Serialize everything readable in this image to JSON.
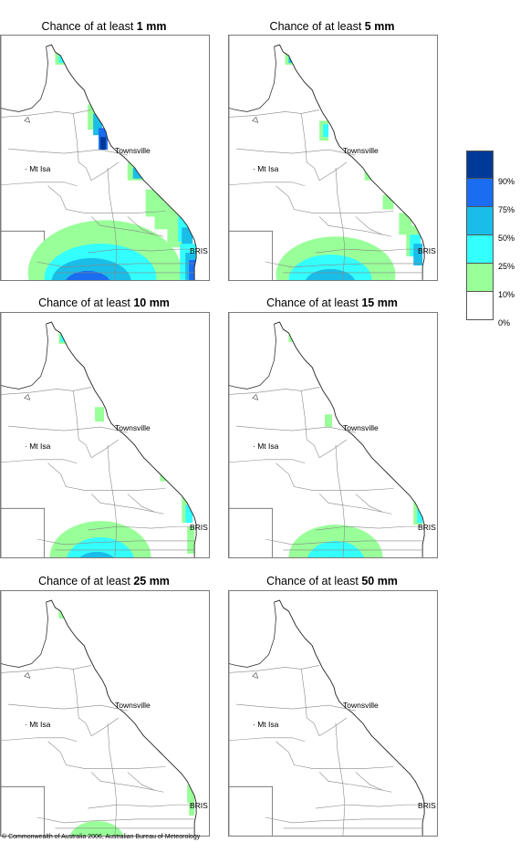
{
  "panels": [
    {
      "title_prefix": "Chance of at least ",
      "title_value": "1 mm",
      "level": 1
    },
    {
      "title_prefix": "Chance of at least ",
      "title_value": "5 mm",
      "level": 2
    },
    {
      "title_prefix": "Chance of at least ",
      "title_value": "10 mm",
      "level": 3
    },
    {
      "title_prefix": "Chance of at least ",
      "title_value": "15 mm",
      "level": 4
    },
    {
      "title_prefix": "Chance of at least ",
      "title_value": "25 mm",
      "level": 5
    },
    {
      "title_prefix": "Chance of at least ",
      "title_value": "50 mm",
      "level": 6
    }
  ],
  "cities": {
    "townsville": "Townsville",
    "mt_isa": "Mt Isa",
    "brisbane": "BRIS"
  },
  "legend": {
    "colors": [
      "#003a99",
      "#1a6cf0",
      "#19bde8",
      "#33ffff",
      "#99ff99",
      "#ffffff"
    ],
    "labels": [
      "90%",
      "75%",
      "50%",
      "25%",
      "10%",
      "0%"
    ]
  },
  "footer": "© Commonwealth of Australia 2006, Australian Bureau of Meteorology"
}
